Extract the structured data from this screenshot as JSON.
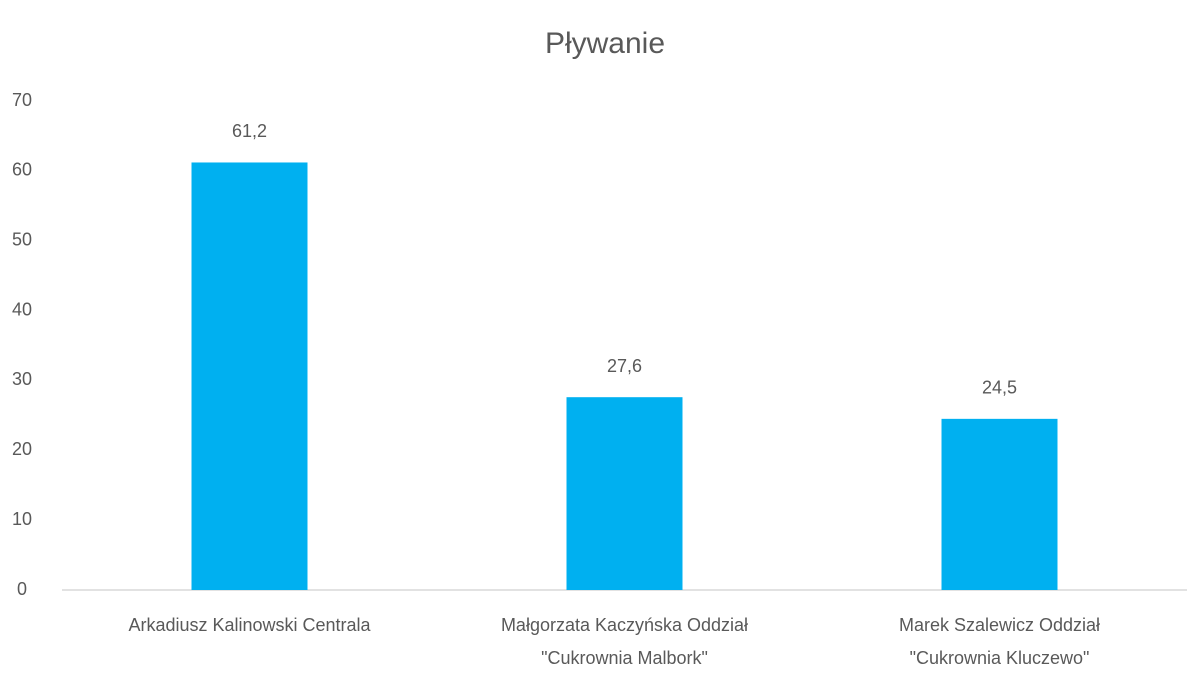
{
  "chart_data": {
    "type": "bar",
    "title": "Pływanie",
    "categories": [
      [
        "Arkadiusz Kalinowski Centrala"
      ],
      [
        "Małgorzata Kaczyńska Oddział",
        "\"Cukrownia Malbork\""
      ],
      [
        "Marek Szalewicz Oddział",
        "\"Cukrownia Kluczewo\""
      ]
    ],
    "values": [
      61.2,
      27.6,
      24.5
    ],
    "value_labels": [
      "61,2",
      "27,6",
      "24,5"
    ],
    "color": "#00b0f0",
    "ylim": [
      0,
      70
    ],
    "yticks": [
      0,
      10,
      20,
      30,
      40,
      50,
      60,
      70
    ],
    "grid": false
  }
}
